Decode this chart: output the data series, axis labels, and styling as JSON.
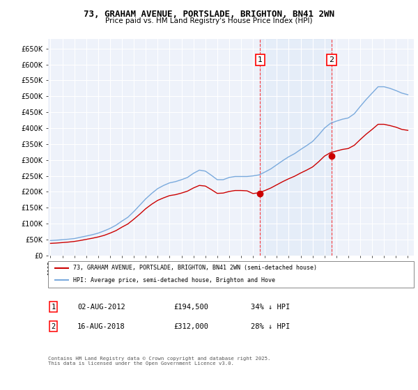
{
  "title": "73, GRAHAM AVENUE, PORTSLADE, BRIGHTON, BN41 2WN",
  "subtitle": "Price paid vs. HM Land Registry's House Price Index (HPI)",
  "ylim": [
    0,
    680000
  ],
  "yticks": [
    0,
    50000,
    100000,
    150000,
    200000,
    250000,
    300000,
    350000,
    400000,
    450000,
    500000,
    550000,
    600000,
    650000
  ],
  "ytick_labels": [
    "£0",
    "£50K",
    "£100K",
    "£150K",
    "£200K",
    "£250K",
    "£300K",
    "£350K",
    "£400K",
    "£450K",
    "£500K",
    "£550K",
    "£600K",
    "£650K"
  ],
  "background_color": "#ffffff",
  "plot_bg_color": "#eef2fa",
  "grid_color": "#ffffff",
  "hpi_color": "#7aaadd",
  "price_color": "#cc0000",
  "sale1_price": 194500,
  "sale1_date": "02-AUG-2012",
  "sale1_label": "34% ↓ HPI",
  "sale1_year": 2012.6,
  "sale2_price": 312000,
  "sale2_date": "16-AUG-2018",
  "sale2_label": "28% ↓ HPI",
  "sale2_year": 2018.6,
  "legend_line1": "73, GRAHAM AVENUE, PORTSLADE, BRIGHTON, BN41 2WN (semi-detached house)",
  "legend_line2": "HPI: Average price, semi-detached house, Brighton and Hove",
  "footer": "Contains HM Land Registry data © Crown copyright and database right 2025.\nThis data is licensed under the Open Government Licence v3.0.",
  "hpi_x": [
    1995,
    1995.5,
    1996,
    1996.5,
    1997,
    1997.5,
    1998,
    1998.5,
    1999,
    1999.5,
    2000,
    2000.5,
    2001,
    2001.5,
    2002,
    2002.5,
    2003,
    2003.5,
    2004,
    2004.5,
    2005,
    2005.5,
    2006,
    2006.5,
    2007,
    2007.5,
    2008,
    2008.5,
    2009,
    2009.5,
    2010,
    2010.5,
    2011,
    2011.5,
    2012,
    2012.5,
    2013,
    2013.5,
    2014,
    2014.5,
    2015,
    2015.5,
    2016,
    2016.5,
    2017,
    2017.5,
    2018,
    2018.5,
    2019,
    2019.5,
    2020,
    2020.5,
    2021,
    2021.5,
    2022,
    2022.5,
    2023,
    2023.5,
    2024,
    2024.5,
    2025
  ],
  "hpi_y": [
    47000,
    48000,
    49500,
    51000,
    53000,
    57000,
    61000,
    65000,
    70000,
    77000,
    85000,
    95000,
    108000,
    120000,
    138000,
    158000,
    178000,
    195000,
    210000,
    220000,
    228000,
    232000,
    238000,
    245000,
    258000,
    268000,
    265000,
    252000,
    238000,
    238000,
    245000,
    248000,
    248000,
    248000,
    250000,
    253000,
    262000,
    272000,
    285000,
    298000,
    310000,
    320000,
    333000,
    345000,
    358000,
    378000,
    400000,
    415000,
    422000,
    428000,
    432000,
    445000,
    468000,
    490000,
    510000,
    530000,
    530000,
    525000,
    518000,
    510000,
    505000
  ],
  "price_x": [
    1995,
    1995.5,
    1996,
    1996.5,
    1997,
    1997.5,
    1998,
    1998.5,
    1999,
    1999.5,
    2000,
    2000.5,
    2001,
    2001.5,
    2002,
    2002.5,
    2003,
    2003.5,
    2004,
    2004.5,
    2005,
    2005.5,
    2006,
    2006.5,
    2007,
    2007.5,
    2008,
    2008.5,
    2009,
    2009.5,
    2010,
    2010.5,
    2011,
    2011.5,
    2012,
    2012.5,
    2013,
    2013.5,
    2014,
    2014.5,
    2015,
    2015.5,
    2016,
    2016.5,
    2017,
    2017.5,
    2018,
    2018.5,
    2019,
    2019.5,
    2020,
    2020.5,
    2021,
    2021.5,
    2022,
    2022.5,
    2023,
    2023.5,
    2024,
    2024.5,
    2025
  ],
  "price_y": [
    38000,
    39000,
    40500,
    42000,
    44000,
    47000,
    50500,
    54000,
    58000,
    63000,
    70000,
    78000,
    89000,
    99000,
    114000,
    130000,
    147000,
    161000,
    173000,
    181000,
    188000,
    191000,
    196000,
    202000,
    212000,
    220000,
    218000,
    207000,
    195000,
    196000,
    201000,
    204000,
    204000,
    203000,
    194500,
    197000,
    204000,
    212000,
    222000,
    232000,
    241000,
    249000,
    259000,
    268000,
    278000,
    294000,
    312000,
    323000,
    328000,
    333000,
    336000,
    346000,
    364000,
    381000,
    396000,
    412000,
    412000,
    408000,
    403000,
    396000,
    393000
  ]
}
